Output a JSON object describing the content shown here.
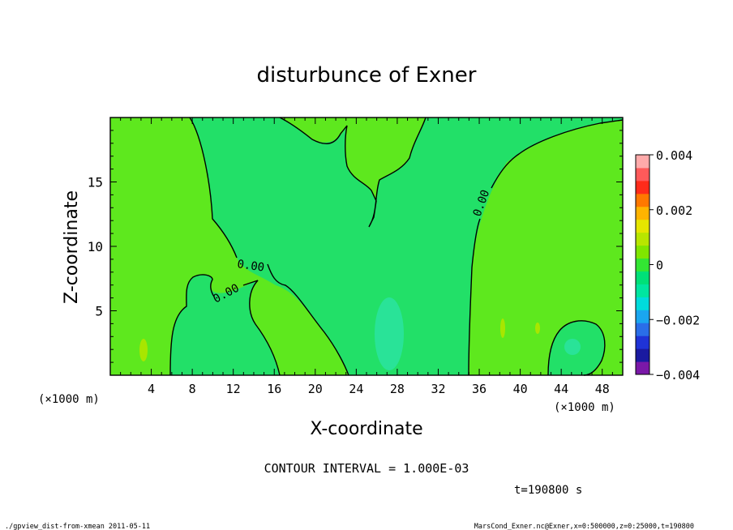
{
  "chart_data": {
    "type": "heatmap",
    "title": "disturbunce of Exner",
    "xlabel": "X-coordinate",
    "ylabel": "Z-coordinate",
    "x_unit_left": "(×1000 m)",
    "x_unit_right": "(×1000 m)",
    "xlim": [
      0,
      50
    ],
    "ylim": [
      0,
      20
    ],
    "xticks": [
      4,
      8,
      12,
      16,
      20,
      24,
      28,
      32,
      36,
      40,
      44,
      48
    ],
    "yticks": [
      5,
      10,
      15
    ],
    "colorbar": {
      "min": -0.004,
      "max": 0.004,
      "step": 0.0005,
      "tick_labels": [
        "0.004",
        "0.002",
        "0",
        "−0.002",
        "−0.004"
      ],
      "tick_values": [
        0.004,
        0.002,
        0,
        -0.002,
        -0.004
      ],
      "colors": [
        "#7a18a8",
        "#1a1aa0",
        "#1f33d6",
        "#2a6ee8",
        "#1aa6f0",
        "#00dcdc",
        "#00e6a0",
        "#00e078",
        "#33e633",
        "#80e600",
        "#b8e600",
        "#e6e600",
        "#ffb400",
        "#ff7800",
        "#ff2b1a",
        "#ff5a5a",
        "#ffaaaa"
      ]
    },
    "field": {
      "positive_color": "#5ee81e",
      "negative_color": "#22e068",
      "anomaly_color": "#29e398"
    },
    "contour_labels": [
      "0.00",
      "0.00",
      "0.00"
    ],
    "contour_interval_text": "CONTOUR INTERVAL = 1.000E-03",
    "time_text": "t=190800 s"
  },
  "footer": {
    "left": "./gpview_dist-from-xmean  2011-05-11",
    "right": "MarsCond_Exner.nc@Exner,x=0:500000,z=0:25000,t=190800"
  }
}
